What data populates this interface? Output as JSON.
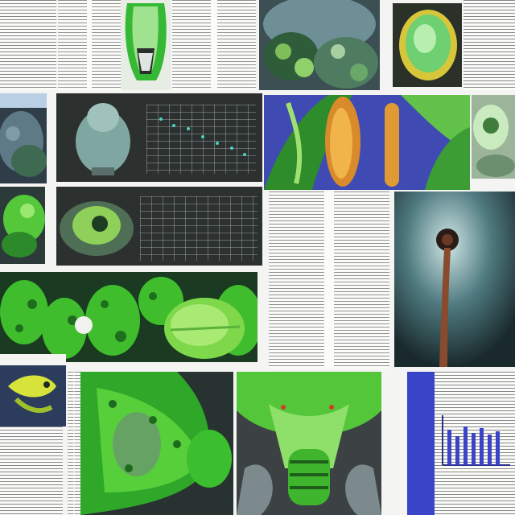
{
  "collage": {
    "description_colors": {
      "paper": "#fbfbf8",
      "dark_panel": "#2c302f",
      "leaf_green": "#4fd12a",
      "deep_green": "#1f6e1e",
      "teal_gray": "#6f8f8c",
      "blue_chart": "#3a44c8"
    }
  }
}
